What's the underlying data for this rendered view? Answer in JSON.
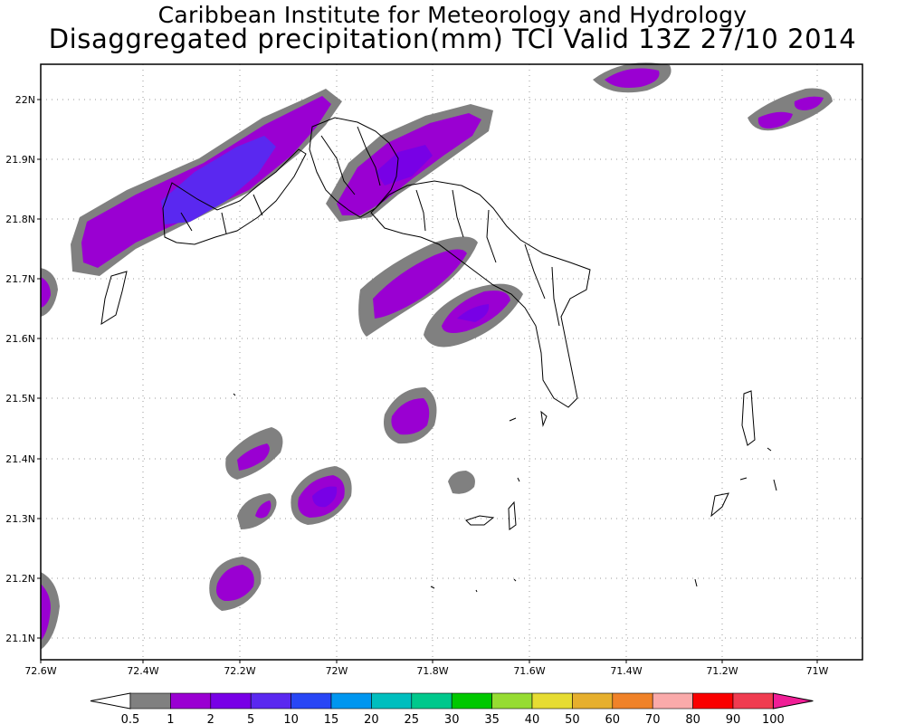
{
  "header": {
    "line1": "Caribbean Institute for Meteorology and Hydrology",
    "line2": "Disaggregated precipitation(mm) TCI Valid 13Z 27/10 2014"
  },
  "axes": {
    "x_ticks": [
      "72.6W",
      "72.4W",
      "72.2W",
      "72W",
      "71.8W",
      "71.6W",
      "71.4W",
      "71.2W",
      "71W"
    ],
    "y_ticks": [
      "22N",
      "21.9N",
      "21.8N",
      "21.7N",
      "21.6N",
      "21.5N",
      "21.4N",
      "21.3N",
      "21.2N",
      "21.1N"
    ]
  },
  "colorbar": {
    "labels": [
      "0.5",
      "1",
      "2",
      "5",
      "10",
      "15",
      "20",
      "25",
      "30",
      "35",
      "40",
      "50",
      "60",
      "70",
      "80",
      "90",
      "100"
    ],
    "colors": [
      "#808080",
      "#9a00d2",
      "#7800e6",
      "#5a28f0",
      "#2846f5",
      "#0096f0",
      "#00bebe",
      "#00c88c",
      "#00c800",
      "#96dc32",
      "#e6dc32",
      "#e6af2d",
      "#f08228",
      "#faaaaa",
      "#fa0000",
      "#f03c50",
      "#f01e96"
    ]
  },
  "chart_data": {
    "type": "heatmap",
    "title": "Disaggregated precipitation(mm) TCI Valid 13Z 27/10 2014",
    "suptitle": "Caribbean Institute for Meteorology and Hydrology",
    "x_range": [
      "72.6W",
      "70.9W"
    ],
    "y_range": [
      "21.06N",
      "22.06N"
    ],
    "colorbar_levels": [
      0.5,
      1,
      2,
      5,
      10,
      15,
      20,
      25,
      30,
      35,
      40,
      50,
      60,
      70,
      80,
      90,
      100
    ],
    "grid": true,
    "colorbar_position": "bottom"
  }
}
